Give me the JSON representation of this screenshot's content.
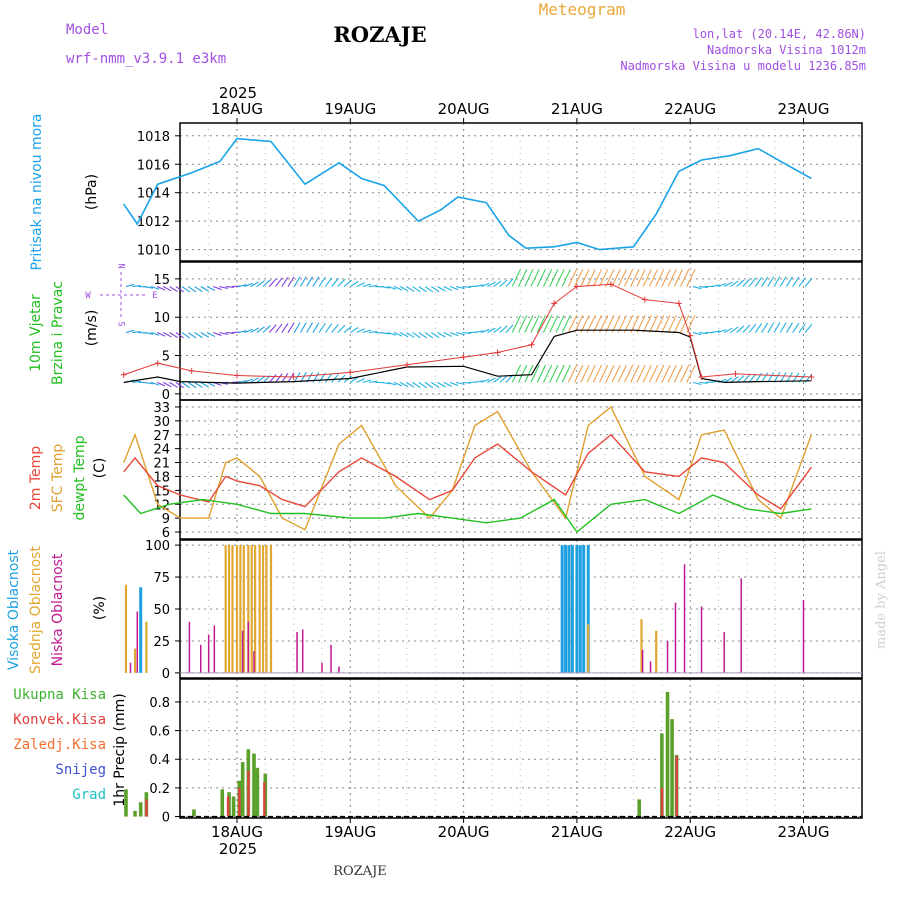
{
  "header": {
    "title": "ROZAJE",
    "meteogram_label": "Meteogram",
    "model_label": "Model",
    "model_name": "wrf-nmm_v3.9.1  e3km",
    "lonlat": "lon,lat (20.14E, 42.86N)",
    "altitude": "Nadmorska Visina 1012m",
    "model_altitude": "Nadmorska Visina u modelu 1236.85m",
    "footer_title": "ROZAJE",
    "credit": "made by Angel"
  },
  "colors": {
    "pressure": "#1aa3e8",
    "temp2m": "#e8483a",
    "sfc": "#e0a030",
    "dewpt": "#22c020",
    "high": "#1ea0e0",
    "mid": "#e0a830",
    "low": "#c01890",
    "precip_total": "#5aa02a",
    "precip_conv": "#e04040",
    "grid": "#888888",
    "title_orange": "#e8a838",
    "model_purple": "#a050e0"
  },
  "chart_data": [
    {
      "id": "time_axis",
      "type": "axis",
      "year": "2025",
      "x": [
        "18AUG",
        "19AUG",
        "20AUG",
        "21AUG",
        "22AUG",
        "23AUG"
      ],
      "x_start_days": 0,
      "x_end_days": 6.07
    },
    {
      "id": "pressure",
      "type": "line",
      "ylabel": "Pritisak na nivou mora",
      "unit": "(hPa)",
      "ylim": [
        1009.2,
        1018.9
      ],
      "yticks": [
        1010,
        1012,
        1014,
        1016,
        1018
      ],
      "series": [
        {
          "name": "Pritisak",
          "t": [
            0,
            0.12,
            0.3,
            0.6,
            0.85,
            1.0,
            1.3,
            1.6,
            1.9,
            2.1,
            2.3,
            2.6,
            2.8,
            2.95,
            3.2,
            3.4,
            3.55,
            3.8,
            4.0,
            4.2,
            4.5,
            4.7,
            4.9,
            5.1,
            5.35,
            5.6,
            5.8,
            6.07
          ],
          "v": [
            1013.2,
            1011.8,
            1014.6,
            1015.4,
            1016.2,
            1017.8,
            1017.6,
            1014.6,
            1016.1,
            1015.0,
            1014.5,
            1012.0,
            1012.8,
            1013.7,
            1013.3,
            1011.0,
            1010.1,
            1010.2,
            1010.5,
            1010.0,
            1010.2,
            1012.5,
            1015.5,
            1016.3,
            1016.6,
            1017.1,
            1016.2,
            1015.0
          ]
        }
      ]
    },
    {
      "id": "wind",
      "type": "line",
      "ylabel": "10m Vjetar",
      "ylabel2": "Brzina i Pravac",
      "unit": "(m/s)",
      "compass": [
        "N",
        "W",
        "E",
        "S"
      ],
      "ylim": [
        -0.8,
        17.2
      ],
      "yticks": [
        0,
        5,
        10,
        15
      ],
      "barb_rows": [
        14,
        8,
        1.5
      ],
      "series": [
        {
          "name": "Brzina",
          "t": [
            0,
            0.3,
            0.5,
            1.0,
            1.5,
            2.0,
            2.5,
            3.0,
            3.3,
            3.6,
            3.8,
            4.0,
            4.5,
            4.9,
            5.0,
            5.1,
            5.3,
            5.6,
            6.07
          ],
          "v": [
            1.5,
            2.2,
            1.6,
            1.4,
            1.6,
            2.0,
            3.5,
            3.6,
            2.3,
            2.5,
            7.5,
            8.3,
            8.3,
            8.0,
            7.4,
            2.0,
            1.5,
            1.6,
            1.7
          ]
        },
        {
          "name": "Udari",
          "t": [
            0,
            0.3,
            0.6,
            1.0,
            1.5,
            2.0,
            2.5,
            3.0,
            3.3,
            3.6,
            3.8,
            4.0,
            4.3,
            4.6,
            4.9,
            5.0,
            5.1,
            5.4,
            6.07
          ],
          "v": [
            2.5,
            4.0,
            3.0,
            2.4,
            2.2,
            2.8,
            3.8,
            4.8,
            5.4,
            6.4,
            11.8,
            14.0,
            14.3,
            12.3,
            11.8,
            7.6,
            2.2,
            2.6,
            2.2
          ]
        }
      ]
    },
    {
      "id": "temperature",
      "type": "line",
      "ylabel": "2m Temp",
      "ylabel2": "SFC Temp",
      "ylabel3": "dewpt Temp",
      "unit": "(C)",
      "ylim": [
        4.5,
        34.5
      ],
      "yticks": [
        6,
        9,
        12,
        15,
        18,
        21,
        24,
        27,
        30,
        33
      ],
      "series": [
        {
          "name": "2m Temp",
          "t": [
            0,
            0.1,
            0.3,
            0.5,
            0.75,
            0.9,
            1.0,
            1.2,
            1.4,
            1.6,
            1.9,
            2.1,
            2.4,
            2.7,
            2.9,
            3.1,
            3.3,
            3.6,
            3.9,
            4.1,
            4.3,
            4.6,
            4.9,
            5.1,
            5.3,
            5.6,
            5.8,
            6.07
          ],
          "v": [
            19,
            22,
            16,
            14,
            12.5,
            18,
            17,
            16,
            13,
            11.5,
            19,
            22,
            18,
            13,
            15,
            22,
            25,
            19,
            14,
            23,
            27,
            19,
            18,
            22,
            21,
            14,
            11,
            20
          ]
        },
        {
          "name": "SFC Temp",
          "t": [
            0,
            0.1,
            0.3,
            0.5,
            0.75,
            0.9,
            1.0,
            1.2,
            1.4,
            1.6,
            1.9,
            2.1,
            2.4,
            2.7,
            2.9,
            3.1,
            3.3,
            3.6,
            3.9,
            4.1,
            4.3,
            4.6,
            4.9,
            5.1,
            5.3,
            5.6,
            5.8,
            6.07
          ],
          "v": [
            21,
            27,
            12,
            9,
            9,
            21,
            22,
            18,
            9,
            6.5,
            25,
            29,
            16,
            9,
            15,
            29,
            32,
            19,
            9,
            29,
            33,
            18,
            13,
            27,
            28,
            13,
            9,
            27
          ]
        },
        {
          "name": "dewpt Temp",
          "t": [
            0,
            0.15,
            0.4,
            0.7,
            1.0,
            1.3,
            1.6,
            2.0,
            2.3,
            2.6,
            2.9,
            3.2,
            3.5,
            3.8,
            4.0,
            4.3,
            4.6,
            4.9,
            5.2,
            5.5,
            5.8,
            6.07
          ],
          "v": [
            14,
            10,
            12,
            13,
            12,
            10,
            10,
            9,
            9,
            10,
            9,
            8,
            9,
            13,
            6,
            12,
            13,
            10,
            14,
            11,
            10,
            11
          ]
        }
      ]
    },
    {
      "id": "clouds",
      "type": "bar",
      "ylabel": "Visoka Oblacnost",
      "ylabel2": "Srednja Oblacnost",
      "ylabel3": "Niska Oblacnost",
      "unit": "(%)",
      "ylim": [
        -4,
        104
      ],
      "yticks": [
        0,
        25,
        50,
        75,
        100
      ],
      "series": [
        {
          "name": "Visoka",
          "t": [
            0.15,
            3.87,
            3.9,
            3.93,
            3.96,
            4.0,
            4.03,
            4.06,
            4.1
          ],
          "v": [
            67,
            100,
            100,
            100,
            100,
            100,
            100,
            100,
            100
          ]
        },
        {
          "name": "Srednja",
          "t": [
            0.02,
            0.1,
            0.2,
            0.9,
            0.93,
            0.96,
            1.0,
            1.03,
            1.06,
            1.1,
            1.13,
            1.16,
            1.2,
            1.23,
            1.26,
            1.3,
            4.1,
            4.57,
            4.7
          ],
          "v": [
            69,
            19,
            40,
            100,
            100,
            100,
            100,
            100,
            100,
            100,
            100,
            100,
            100,
            100,
            100,
            100,
            38,
            42,
            33
          ]
        },
        {
          "name": "Niska",
          "t": [
            0.06,
            0.12,
            0.58,
            0.68,
            0.75,
            0.8,
            1.05,
            1.1,
            1.15,
            1.53,
            1.58,
            1.75,
            1.83,
            1.9,
            4.58,
            4.65,
            4.8,
            4.87,
            4.95,
            5.1,
            5.3,
            5.45,
            6.0
          ],
          "v": [
            8,
            48,
            40,
            22,
            30,
            37,
            33,
            40,
            17,
            32,
            34,
            8,
            22,
            5,
            18,
            9,
            25,
            55,
            85,
            52,
            32,
            74,
            57
          ]
        }
      ]
    },
    {
      "id": "precip",
      "type": "bar",
      "ylabel": "1hr Precip (mm)",
      "legend": [
        "Ukupna Kisa",
        "Konvek.Kisa",
        "Zaledj.Kisa",
        "Snijeg",
        "Grad"
      ],
      "ylim": [
        -0.01,
        0.96
      ],
      "yticks": [
        0,
        0.2,
        0.4,
        0.6,
        0.8
      ],
      "series": [
        {
          "name": "Ukupna Kisa",
          "t": [
            0.02,
            0.1,
            0.15,
            0.2,
            0.62,
            0.87,
            0.93,
            0.97,
            1.02,
            1.05,
            1.1,
            1.15,
            1.18,
            1.25,
            4.55,
            4.75,
            4.8,
            4.84,
            4.88
          ],
          "v": [
            0.19,
            0.04,
            0.1,
            0.17,
            0.05,
            0.19,
            0.17,
            0.14,
            0.25,
            0.38,
            0.47,
            0.44,
            0.34,
            0.3,
            0.12,
            0.58,
            0.87,
            0.68,
            0.43
          ]
        },
        {
          "name": "Konvek.Kisa",
          "t": [
            0.18,
            0.9,
            1.0,
            1.08,
            1.22,
            4.73,
            4.86
          ],
          "v": [
            0.12,
            0.14,
            0.2,
            0.32,
            0.24,
            0.2,
            0.42
          ]
        }
      ]
    }
  ]
}
